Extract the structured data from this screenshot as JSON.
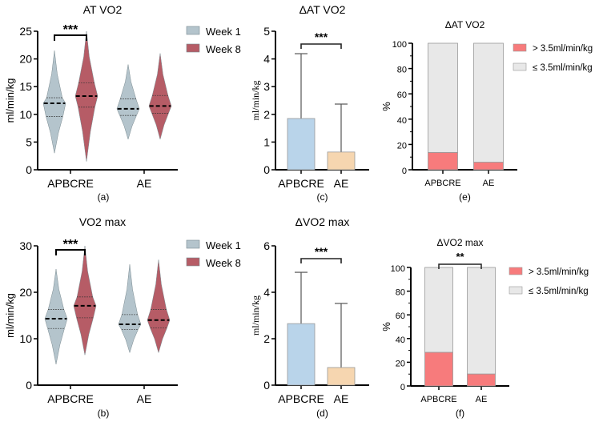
{
  "colors": {
    "week1": "#b4c4cc",
    "week8": "#b65c66",
    "bar_apbcre": "#b9d4ea",
    "bar_ae": "#f6d6b0",
    "above": "#f77b7c",
    "below": "#e8e8e8",
    "bar_edge": "#888888"
  },
  "chart_data": [
    {
      "id": "a",
      "type": "violin",
      "panel_label": "(a)",
      "title": "AT VO2",
      "ylabel": "ml/min/kg",
      "ylim": [
        0,
        25
      ],
      "yticks": [
        "0",
        "5",
        "10",
        "15",
        "20",
        "25"
      ],
      "categories": [
        "APBCRE",
        "AE"
      ],
      "legend": [
        "Week 1",
        "Week 8"
      ],
      "series": [
        {
          "name": "Week 1",
          "stats": [
            {
              "min": 3.0,
              "q1": 9.6,
              "median": 12.0,
              "q3": 13.0,
              "max": 21.5
            },
            {
              "min": 5.5,
              "q1": 9.8,
              "median": 11.0,
              "q3": 12.8,
              "max": 19.0
            }
          ]
        },
        {
          "name": "Week 8",
          "stats": [
            {
              "min": 1.5,
              "q1": 11.3,
              "median": 13.3,
              "q3": 15.7,
              "max": 25.0
            },
            {
              "min": 5.5,
              "q1": 10.2,
              "median": 11.5,
              "q3": 13.4,
              "max": 21.0
            }
          ]
        }
      ],
      "significance": [
        {
          "between": [
            "APBCRE Week 1",
            "APBCRE Week 8"
          ],
          "label": "***"
        }
      ]
    },
    {
      "id": "b",
      "type": "violin",
      "panel_label": "(b)",
      "title": "VO2 max",
      "ylabel": "ml/min/kg",
      "ylim": [
        0,
        30
      ],
      "yticks": [
        "0",
        "10",
        "20",
        "30"
      ],
      "categories": [
        "APBCRE",
        "AE"
      ],
      "legend": [
        "Week 1",
        "Week 8"
      ],
      "series": [
        {
          "name": "Week 1",
          "stats": [
            {
              "min": 4.5,
              "q1": 12.2,
              "median": 14.3,
              "q3": 16.3,
              "max": 25.0
            },
            {
              "min": 7.0,
              "q1": 12.0,
              "median": 13.1,
              "q3": 15.2,
              "max": 26.0
            }
          ]
        },
        {
          "name": "Week 8",
          "stats": [
            {
              "min": 6.5,
              "q1": 14.5,
              "median": 17.1,
              "q3": 19.0,
              "max": 30.0
            },
            {
              "min": 7.0,
              "q1": 12.3,
              "median": 14.0,
              "q3": 16.3,
              "max": 27.0
            }
          ]
        }
      ],
      "significance": [
        {
          "between": [
            "APBCRE Week 1",
            "APBCRE Week 8"
          ],
          "label": "***"
        }
      ]
    },
    {
      "id": "c",
      "type": "bar",
      "panel_label": "(c)",
      "title": "ΔAT VO2",
      "ylabel": "ml/min/kg",
      "ylim": [
        0,
        5
      ],
      "yticks": [
        "0",
        "1",
        "2",
        "3",
        "4",
        "5"
      ],
      "categories": [
        "APBCRE",
        "AE"
      ],
      "values": [
        1.85,
        0.64
      ],
      "error_upper": [
        4.19,
        2.37
      ],
      "significance": [
        {
          "between": [
            "APBCRE",
            "AE"
          ],
          "label": "***"
        }
      ]
    },
    {
      "id": "d",
      "type": "bar",
      "panel_label": "(d)",
      "title": "ΔVO2 max",
      "ylabel": "ml/min/kg",
      "ylim": [
        0,
        6
      ],
      "yticks": [
        "0",
        "2",
        "4",
        "6"
      ],
      "categories": [
        "APBCRE",
        "AE"
      ],
      "values": [
        2.65,
        0.76
      ],
      "error_upper": [
        4.86,
        3.52
      ],
      "significance": [
        {
          "between": [
            "APBCRE",
            "AE"
          ],
          "label": "***"
        }
      ]
    },
    {
      "id": "e",
      "type": "bar",
      "stacked": true,
      "panel_label": "(e)",
      "title": "ΔAT VO2",
      "ylabel": "%",
      "ylim": [
        0,
        100
      ],
      "yticks": [
        "0",
        "20",
        "40",
        "60",
        "80",
        "100"
      ],
      "categories": [
        "APBCRE",
        "AE"
      ],
      "series": [
        {
          "name": "> 3.5ml/min/kg",
          "values": [
            13.7,
            6.0
          ]
        },
        {
          "name": "≤ 3.5ml/min/kg",
          "values": [
            86.3,
            94.0
          ]
        }
      ],
      "legend": [
        "> 3.5ml/min/kg",
        "≤ 3.5ml/min/kg"
      ],
      "legend_position": "right",
      "significance": []
    },
    {
      "id": "f",
      "type": "bar",
      "stacked": true,
      "panel_label": "(f)",
      "title": "ΔVO2 max",
      "ylabel": "%",
      "ylim": [
        0,
        100
      ],
      "yticks": [
        "0",
        "20",
        "40",
        "60",
        "80",
        "100"
      ],
      "categories": [
        "APBCRE",
        "AE"
      ],
      "series": [
        {
          "name": "> 3.5ml/min/kg",
          "values": [
            28.4,
            10.1
          ]
        },
        {
          "name": "≤ 3.5ml/min/kg",
          "values": [
            71.6,
            89.9
          ]
        }
      ],
      "legend": [
        "> 3.5ml/min/kg",
        "≤ 3.5ml/min/kg"
      ],
      "legend_position": "right",
      "significance": [
        {
          "between": [
            "APBCRE",
            "AE"
          ],
          "label": "**"
        }
      ]
    }
  ]
}
